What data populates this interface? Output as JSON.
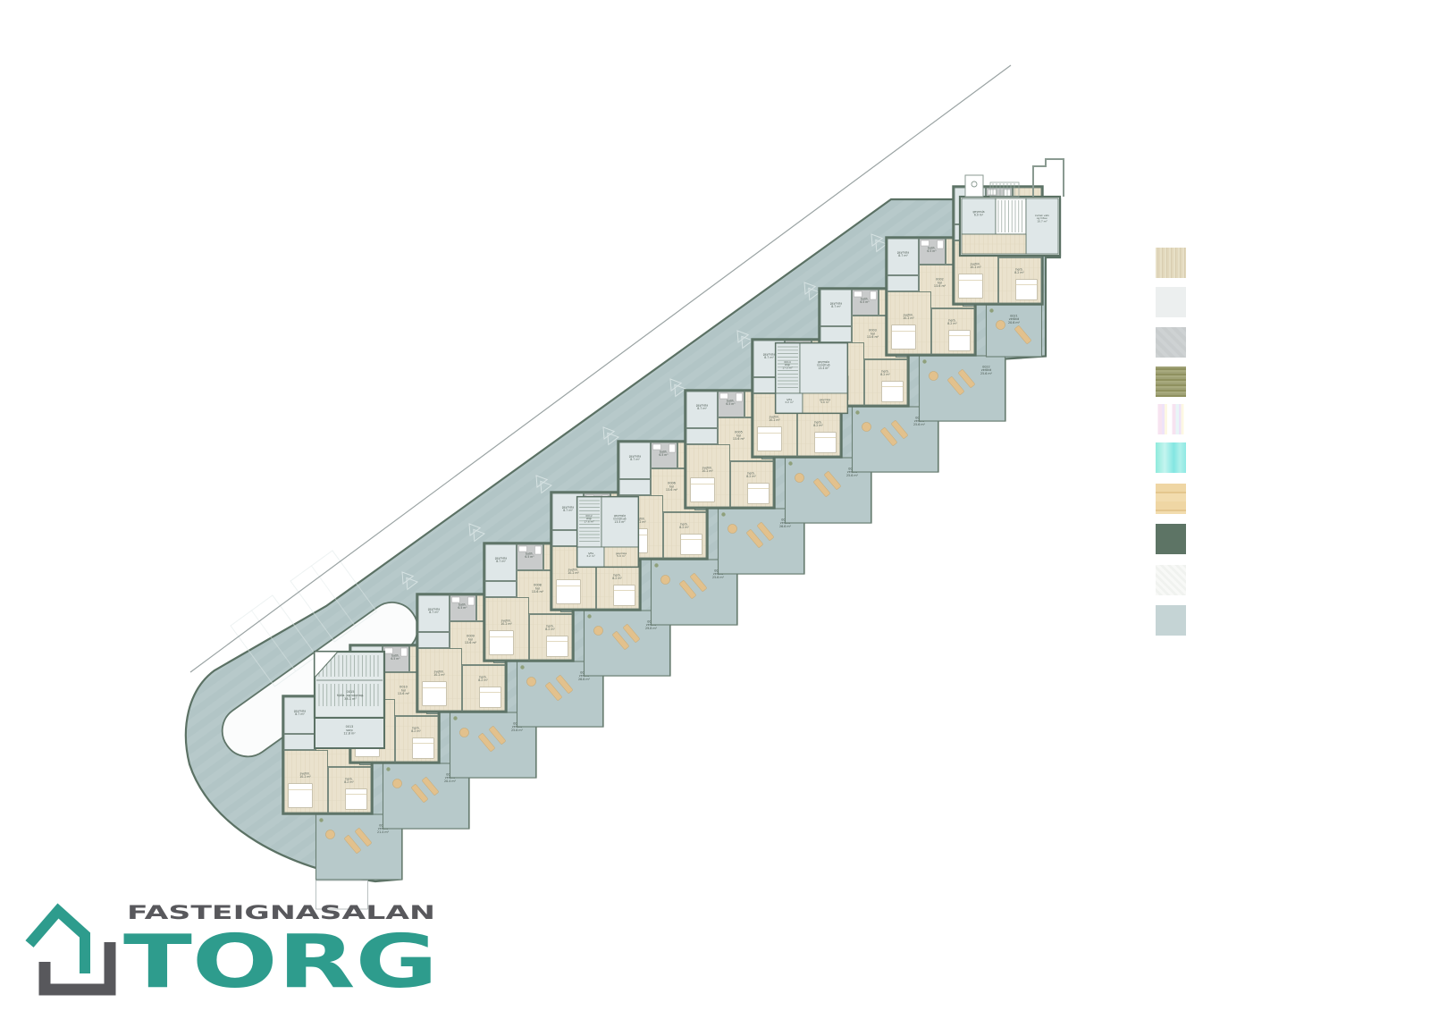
{
  "brand": {
    "tagline": "FASTEIGNASALAN",
    "name": "TORG",
    "teal": "#2d9c8d",
    "gray": "#58595b"
  },
  "legend": {
    "swatches": [
      {
        "name": "beige-wood-decking",
        "css": "repeating-linear-gradient(90deg,#e7dfc6 0 2px,#d8cdb0 2px 3px,#e2d8bc 3px 5px)"
      },
      {
        "name": "light-concrete",
        "css": "#ecefef"
      },
      {
        "name": "grey-concrete",
        "css": "repeating-linear-gradient(45deg,#ced2d3 0 4px,#c8cccd 4px 8px)"
      },
      {
        "name": "olive-timber",
        "css": "repeating-linear-gradient(180deg,#9fa175 0 2px,#8f915f 2px 4px,#a8aa7e 4px 6px)"
      },
      {
        "name": "iridescent-stripe-glass",
        "css": "linear-gradient(90deg,#ffffff 0 8%,#f7e3f0 8% 20%,#efe3f8 20% 30%,#fdf8e3 30% 38%,#ffffff 38% 55%,#f7e3f0 55% 66%,#e8f6f7 66% 76%,#efe3f8 76% 84%,#fdf8e3 84% 92%,#ffffff 92%)"
      },
      {
        "name": "aqua-glass",
        "css": "linear-gradient(90deg,#8feadc,#c4f5ef 30%,#83e6e2 60%,#aff0ea 80%,#8fe9e4)"
      },
      {
        "name": "wood-flooring",
        "css": "repeating-linear-gradient(180deg,#efd6a4 0 9px,#e4c68e 9px 11px,#f2dcae 11px 20px)"
      },
      {
        "name": "green-sedum-roof",
        "css": "#5d7465"
      },
      {
        "name": "textured-white-plaster",
        "css": "repeating-linear-gradient(45deg,#f8f9f7 0 3px,#f0f2ef 3px 6px)"
      },
      {
        "name": "blue-grey-paving",
        "css": "#c5d4d5"
      }
    ]
  },
  "plan": {
    "colors": {
      "deck": "#b7c9ca",
      "deckDark": "#b0c3c4",
      "wall": "#5b7164",
      "wood": "#eae2cd",
      "woodLine": "#d6cbae",
      "pale": "#dfe7e8",
      "bath": "#c9cbcb",
      "tan": "#e2c18d",
      "label": "#4e5c54",
      "boundary": "#9aa3a3",
      "marking": "#dfe8e8"
    },
    "room_labels": {
      "storage": "geymsla",
      "storage_area": "8.7 m²",
      "bath": "baðh.",
      "bath_area": "6.5 m²",
      "laundry": "þvottah.",
      "laundry_area": "5.2 m²",
      "closet": "þvottah.",
      "closet_area": "1.8 m²",
      "hall": "hol",
      "hall_area": "13.6 m²",
      "bedroom": "svefnh.",
      "bedroom_area": "10.2 m²",
      "room": "herb.",
      "room_area": "8.2 m²",
      "terrace": "verönd"
    },
    "units": [
      {
        "id": "0011",
        "hall_label": "stofa · hol",
        "hall_area": "23.0 m²",
        "terrace_id": "0031",
        "terrace_area": "21.4 m²",
        "patio": true
      },
      {
        "id": "0010",
        "terrace_id": "0030",
        "terrace_area": "20.4 m²"
      },
      {
        "id": "0009",
        "terrace_id": "0029",
        "terrace_area": "25.6 m²"
      },
      {
        "id": "0008",
        "terrace_id": "0028",
        "terrace_area": "26.6 m²"
      },
      {
        "id": "0007",
        "terrace_id": "0027",
        "terrace_area": "29.8 m²"
      },
      {
        "id": "0006",
        "terrace_id": "0026",
        "terrace_area": "25.6 m²"
      },
      {
        "id": "0005",
        "terrace_id": "0025",
        "terrace_area": "26.6 m²"
      },
      {
        "id": "0004",
        "terrace_id": "0024",
        "terrace_area": "25.6 m²"
      },
      {
        "id": "0003",
        "terrace_id": "0023",
        "terrace_area": "25.6 m²"
      },
      {
        "id": "0002",
        "terrace_id": "0022",
        "terrace_area": "25.6 m²"
      },
      {
        "id": "0001",
        "terrace_id": "0021",
        "terrace_area": "20.6 m²",
        "narrow": true
      }
    ],
    "cores": {
      "bike": {
        "id": "0015",
        "label": "hjóla- og vagnag.",
        "area": "38.1 m²",
        "sub_id": "0013",
        "sub_label": "sorp",
        "sub_area": "12.8 m²"
      },
      "stair1": {
        "id": "0012",
        "label": "stigi",
        "area": "17.6 m²",
        "store": "geymsla innréttuð",
        "store_area": "13.5 m²",
        "lift": "lyfta",
        "lift_area": "3.2 m²",
        "small": "geymsla",
        "small_area": "5.0 m²"
      },
      "stair2": {
        "id": "0014",
        "label": "stigi",
        "area": "17.5 m²",
        "store": "geymsla innréttuð",
        "store_area": "13.4 m²",
        "lift": "lyfta",
        "lift_area": "3.2 m²",
        "small": "geymsla",
        "small_area": "5.0 m²"
      },
      "utility": {
        "label": "inntak vatn",
        "label2": "og hitav.",
        "area": "10.7 m²",
        "store": "geymsla",
        "store_area": "6.0 m²"
      }
    }
  }
}
